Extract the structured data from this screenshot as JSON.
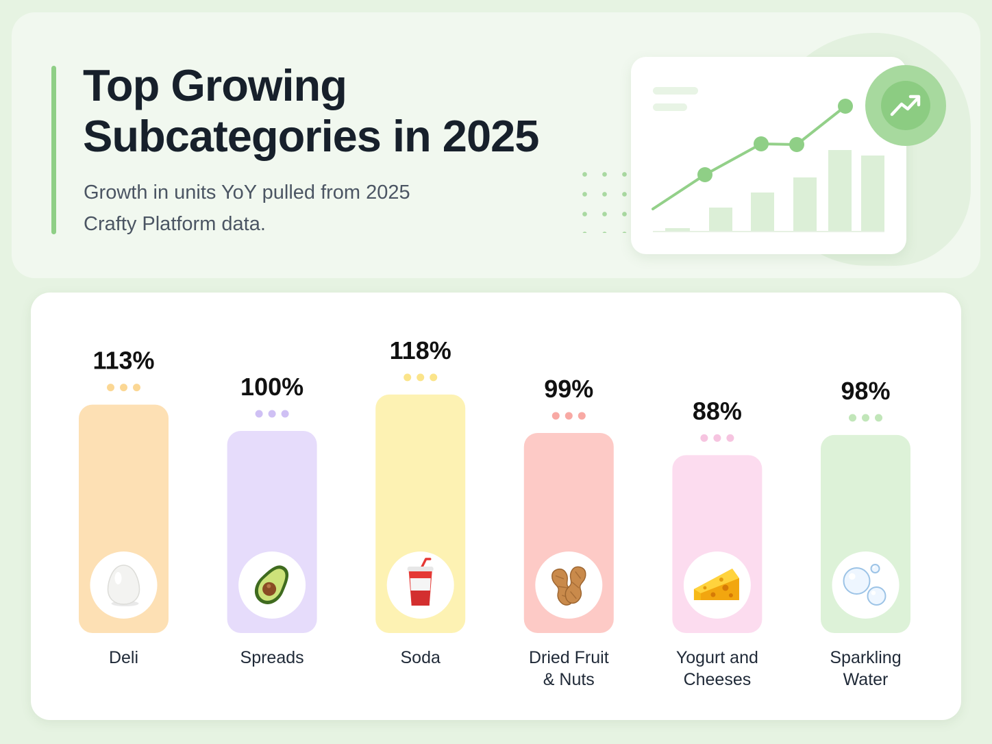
{
  "header": {
    "title_line1": "Top Growing",
    "title_line2": "Subcategories in 2025",
    "subtitle_line1": "Growth in units YoY pulled from 2025",
    "subtitle_line2": "Crafty Platform data."
  },
  "colors": {
    "background": "#e6f3e2",
    "accent": "#8fcf86"
  },
  "chart_data": {
    "type": "bar",
    "title": "Top Growing Subcategories in 2025",
    "ylabel": "",
    "xlabel": "",
    "unit": "%",
    "ylim": [
      0,
      130
    ],
    "grid": false,
    "categories": [
      {
        "label": [
          "Deli"
        ],
        "icon": "egg-icon",
        "color": "#fde0b4",
        "dot_color": "#fbd794"
      },
      {
        "label": [
          "Spreads"
        ],
        "icon": "avocado-icon",
        "color": "#e6dcfb",
        "dot_color": "#cfc0f4"
      },
      {
        "label": [
          "Soda"
        ],
        "icon": "soda-cup-icon",
        "color": "#fdf2b3",
        "dot_color": "#fbe48a"
      },
      {
        "label": [
          "Dried Fruit",
          "& Nuts"
        ],
        "icon": "peanut-icon",
        "color": "#fdcac6",
        "dot_color": "#f8a9a4"
      },
      {
        "label": [
          "Yogurt and",
          "Cheeses"
        ],
        "icon": "cheese-icon",
        "color": "#fcdcef",
        "dot_color": "#f6c4e0"
      },
      {
        "label": [
          "Sparkling",
          "Water"
        ],
        "icon": "bubbles-icon",
        "color": "#ddf2d8",
        "dot_color": "#c1e6b9"
      }
    ],
    "values": [
      113,
      100,
      118,
      99,
      88,
      98
    ],
    "value_labels": [
      "113%",
      "100%",
      "118%",
      "99%",
      "88%",
      "98%"
    ]
  }
}
